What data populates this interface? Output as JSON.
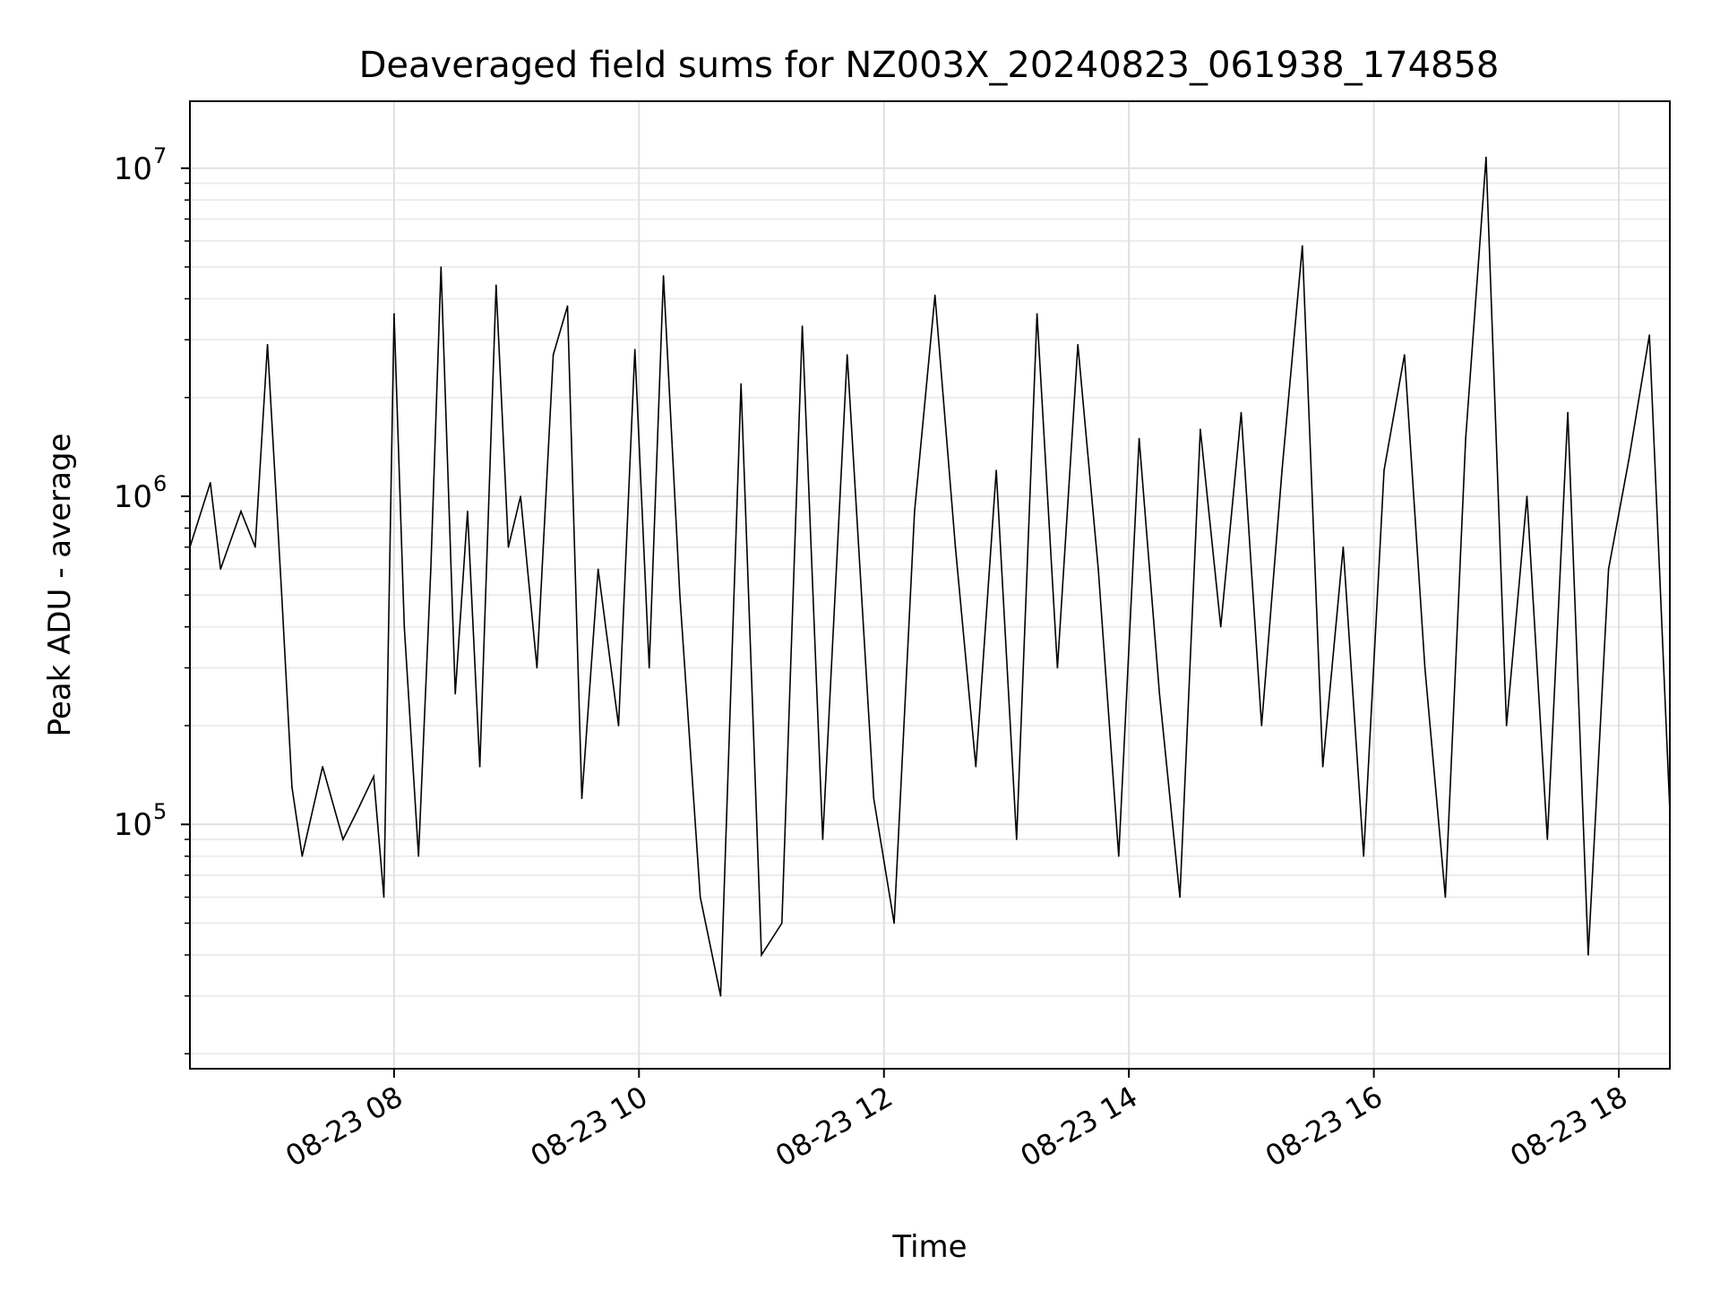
{
  "chart_data": {
    "type": "line",
    "title": "Deaveraged field sums for NZ003X_20240823_061938_174858",
    "xlabel": "Time",
    "ylabel": "Peak ADU - average",
    "yscale": "log",
    "xlim": [
      "2024-08-23 06:20",
      "2024-08-23 18:25"
    ],
    "ylim": [
      18000,
      16000000
    ],
    "grid": true,
    "line_color": "#000000",
    "x_ticks": [
      {
        "value": "2024-08-23 08:00",
        "label": "08-23 08"
      },
      {
        "value": "2024-08-23 10:00",
        "label": "08-23 10"
      },
      {
        "value": "2024-08-23 12:00",
        "label": "08-23 12"
      },
      {
        "value": "2024-08-23 14:00",
        "label": "08-23 14"
      },
      {
        "value": "2024-08-23 16:00",
        "label": "08-23 16"
      },
      {
        "value": "2024-08-23 18:00",
        "label": "08-23 18"
      }
    ],
    "y_ticks": [
      {
        "value": 100000,
        "base": "10",
        "exp": "5"
      },
      {
        "value": 1000000,
        "base": "10",
        "exp": "6"
      },
      {
        "value": 10000000,
        "base": "10",
        "exp": "7"
      }
    ],
    "series": [
      {
        "values": [
          [
            "2024-08-23 06:20",
            700000
          ],
          [
            "2024-08-23 06:30",
            1100000
          ],
          [
            "2024-08-23 06:35",
            600000
          ],
          [
            "2024-08-23 06:45",
            900000
          ],
          [
            "2024-08-23 06:52",
            700000
          ],
          [
            "2024-08-23 06:58",
            2900000
          ],
          [
            "2024-08-23 07:05",
            500000
          ],
          [
            "2024-08-23 07:10",
            130000
          ],
          [
            "2024-08-23 07:15",
            80000
          ],
          [
            "2024-08-23 07:25",
            150000
          ],
          [
            "2024-08-23 07:35",
            90000
          ],
          [
            "2024-08-23 07:42",
            110000
          ],
          [
            "2024-08-23 07:50",
            140000
          ],
          [
            "2024-08-23 07:55",
            60000
          ],
          [
            "2024-08-23 08:00",
            3600000
          ],
          [
            "2024-08-23 08:05",
            400000
          ],
          [
            "2024-08-23 08:12",
            80000
          ],
          [
            "2024-08-23 08:18",
            600000
          ],
          [
            "2024-08-23 08:23",
            5000000
          ],
          [
            "2024-08-23 08:30",
            250000
          ],
          [
            "2024-08-23 08:36",
            900000
          ],
          [
            "2024-08-23 08:42",
            150000
          ],
          [
            "2024-08-23 08:50",
            4400000
          ],
          [
            "2024-08-23 08:56",
            700000
          ],
          [
            "2024-08-23 09:02",
            1000000
          ],
          [
            "2024-08-23 09:10",
            300000
          ],
          [
            "2024-08-23 09:18",
            2700000
          ],
          [
            "2024-08-23 09:25",
            3800000
          ],
          [
            "2024-08-23 09:32",
            120000
          ],
          [
            "2024-08-23 09:40",
            600000
          ],
          [
            "2024-08-23 09:50",
            200000
          ],
          [
            "2024-08-23 09:58",
            2800000
          ],
          [
            "2024-08-23 10:05",
            300000
          ],
          [
            "2024-08-23 10:12",
            4700000
          ],
          [
            "2024-08-23 10:20",
            500000
          ],
          [
            "2024-08-23 10:30",
            60000
          ],
          [
            "2024-08-23 10:40",
            30000
          ],
          [
            "2024-08-23 10:50",
            2200000
          ],
          [
            "2024-08-23 11:00",
            40000
          ],
          [
            "2024-08-23 11:10",
            50000
          ],
          [
            "2024-08-23 11:20",
            3300000
          ],
          [
            "2024-08-23 11:30",
            90000
          ],
          [
            "2024-08-23 11:42",
            2700000
          ],
          [
            "2024-08-23 11:55",
            120000
          ],
          [
            "2024-08-23 12:05",
            50000
          ],
          [
            "2024-08-23 12:15",
            900000
          ],
          [
            "2024-08-23 12:25",
            4100000
          ],
          [
            "2024-08-23 12:35",
            700000
          ],
          [
            "2024-08-23 12:45",
            150000
          ],
          [
            "2024-08-23 12:55",
            1200000
          ],
          [
            "2024-08-23 13:05",
            90000
          ],
          [
            "2024-08-23 13:15",
            3600000
          ],
          [
            "2024-08-23 13:25",
            300000
          ],
          [
            "2024-08-23 13:35",
            2900000
          ],
          [
            "2024-08-23 13:45",
            600000
          ],
          [
            "2024-08-23 13:55",
            80000
          ],
          [
            "2024-08-23 14:05",
            1500000
          ],
          [
            "2024-08-23 14:15",
            250000
          ],
          [
            "2024-08-23 14:25",
            60000
          ],
          [
            "2024-08-23 14:35",
            1600000
          ],
          [
            "2024-08-23 14:45",
            400000
          ],
          [
            "2024-08-23 14:55",
            1800000
          ],
          [
            "2024-08-23 15:05",
            200000
          ],
          [
            "2024-08-23 15:15",
            1200000
          ],
          [
            "2024-08-23 15:25",
            5800000
          ],
          [
            "2024-08-23 15:35",
            150000
          ],
          [
            "2024-08-23 15:45",
            700000
          ],
          [
            "2024-08-23 15:55",
            80000
          ],
          [
            "2024-08-23 16:05",
            1200000
          ],
          [
            "2024-08-23 16:15",
            2700000
          ],
          [
            "2024-08-23 16:25",
            300000
          ],
          [
            "2024-08-23 16:35",
            60000
          ],
          [
            "2024-08-23 16:45",
            1500000
          ],
          [
            "2024-08-23 16:55",
            10800000
          ],
          [
            "2024-08-23 17:05",
            200000
          ],
          [
            "2024-08-23 17:15",
            1000000
          ],
          [
            "2024-08-23 17:25",
            90000
          ],
          [
            "2024-08-23 17:35",
            1800000
          ],
          [
            "2024-08-23 17:45",
            40000
          ],
          [
            "2024-08-23 17:55",
            600000
          ],
          [
            "2024-08-23 18:05",
            1300000
          ],
          [
            "2024-08-23 18:15",
            3100000
          ],
          [
            "2024-08-23 18:25",
            110000
          ]
        ]
      }
    ]
  }
}
